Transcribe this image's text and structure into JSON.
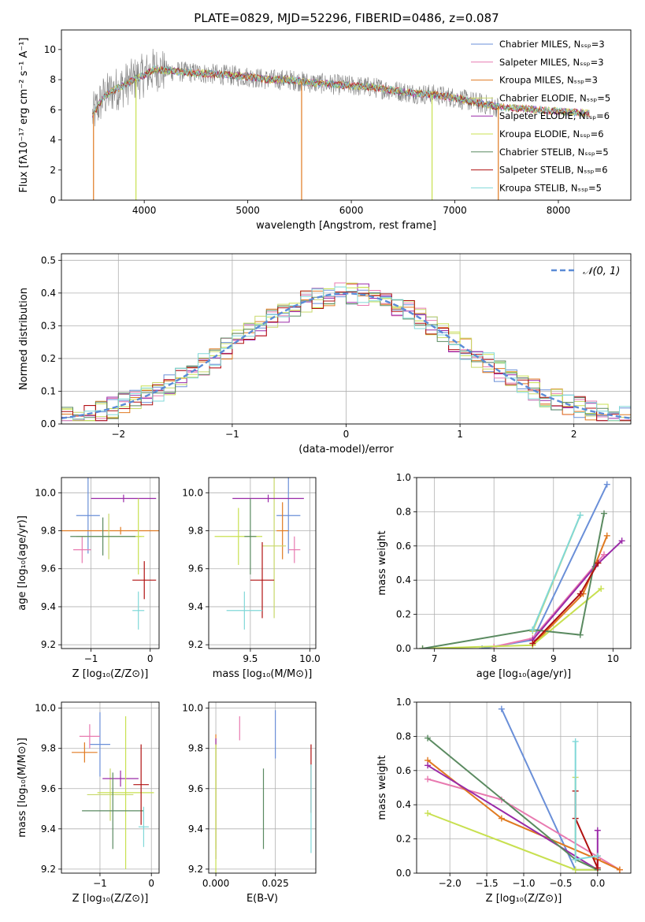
{
  "figure_title": "PLATE=0829, MJD=52296, FIBERID=0486, z=0.087",
  "series_colors": [
    "#6a8fd8",
    "#e87ab0",
    "#e07a20",
    "#c8d86a",
    "#9a2aa8",
    "#c8e050",
    "#5a8a60",
    "#b01010",
    "#80d8d8"
  ],
  "series_labels": [
    "Chabrier MILES, Nₛₛₚ=3",
    "Salpeter MILES, Nₛₛₚ=3",
    "Kroupa MILES, Nₛₛₚ=3",
    "Chabrier ELODIE, Nₛₛₚ=5",
    "Salpeter ELODIE, Nₛₛₚ=6",
    "Kroupa ELODIE, Nₛₛₚ=6",
    "Chabrier STELIB, Nₛₛₚ=5",
    "Salpeter STELIB, Nₛₛₚ=6",
    "Kroupa STELIB, Nₛₛₚ=5"
  ],
  "chart_data": [
    {
      "id": "spectrum",
      "type": "line",
      "xlabel": "wavelength [Angstrom, rest frame]",
      "ylabel": "Flux [fλ10⁻¹⁷ erg cm⁻² s⁻¹ A⁻¹]",
      "xlim": [
        3200,
        8700
      ],
      "ylim": [
        0,
        11.3
      ],
      "xticks": [
        4000,
        5000,
        6000,
        7000,
        8000
      ],
      "yticks": [
        0,
        2,
        4,
        6,
        8,
        10
      ],
      "data_color": "#808080",
      "continuum_wavelength": [
        3500,
        3600,
        3700,
        3800,
        3900,
        4000,
        4100,
        4200,
        4400,
        4600,
        4800,
        5000,
        5200,
        5400,
        5600,
        5800,
        6000,
        6200,
        6400,
        6600,
        6800,
        7000,
        7200,
        7400
      ],
      "continuum_flux": [
        5.6,
        6.8,
        7.3,
        7.6,
        8.0,
        8.3,
        8.7,
        8.6,
        8.5,
        8.4,
        8.3,
        8.2,
        8.0,
        8.0,
        7.8,
        7.7,
        7.6,
        7.5,
        7.3,
        7.1,
        7.0,
        6.8,
        6.5,
        6.2
      ]
    },
    {
      "id": "residuals",
      "type": "histogram",
      "xlabel": "(data-model)/error",
      "ylabel": "Normed distribution",
      "xlim": [
        -2.5,
        2.5
      ],
      "ylim": [
        0,
        0.52
      ],
      "xticks": [
        -2,
        -1,
        0,
        1,
        2
      ],
      "yticks": [
        0.0,
        0.1,
        0.2,
        0.3,
        0.4,
        0.5
      ],
      "legend": "𝒩(0, 1)",
      "gaussian": {
        "mean": 0,
        "sigma": 1,
        "color": "#5b8bd6"
      },
      "bin_width": 0.1,
      "bin_start": -2.5,
      "bin_count": 50
    },
    {
      "id": "age_vs_Z",
      "type": "errorbar",
      "xlabel": "Z [log₁₀(Z/Z⊙)]",
      "ylabel": "age  [log₁₀(age/yr)]",
      "xlim": [
        -1.5,
        0.15
      ],
      "ylim": [
        9.18,
        10.08
      ],
      "xticks": [
        -1,
        0
      ],
      "yticks": [
        9.2,
        9.4,
        9.6,
        9.8,
        10.0
      ],
      "points": [
        {
          "x": -1.05,
          "xerr": 0.2,
          "y": 9.88,
          "yerr": 0.2
        },
        {
          "x": -1.15,
          "xerr": 0.15,
          "y": 9.7,
          "yerr": 0.07
        },
        {
          "x": -0.5,
          "xerr": 1.0,
          "y": 9.8,
          "yerr": 0.02
        },
        {
          "x": -0.7,
          "xerr": 0.55,
          "y": 9.77,
          "yerr": 0.12
        },
        {
          "x": -0.45,
          "xerr": 0.55,
          "y": 9.97,
          "yerr": 0.02
        },
        {
          "x": -0.2,
          "xerr": 0.1,
          "y": 9.77,
          "yerr": 0.2
        },
        {
          "x": -0.8,
          "xerr": 0.55,
          "y": 9.77,
          "yerr": 0.1
        },
        {
          "x": -0.1,
          "xerr": 0.2,
          "y": 9.54,
          "yerr": 0.1
        },
        {
          "x": -0.2,
          "xerr": 0.1,
          "y": 9.38,
          "yerr": 0.1
        }
      ]
    },
    {
      "id": "age_vs_mass",
      "type": "errorbar",
      "xlabel": "mass [log₁₀(M/M⊙)]",
      "ylabel": "",
      "xlim": [
        9.15,
        10.05
      ],
      "ylim": [
        9.18,
        10.08
      ],
      "xticks": [
        9.5,
        10.0
      ],
      "yticks": [
        9.2,
        9.4,
        9.6,
        9.8,
        10.0
      ],
      "points": [
        {
          "x": 9.82,
          "xerr": 0.1,
          "y": 9.88,
          "yerr": 0.2
        },
        {
          "x": 9.87,
          "xerr": 0.05,
          "y": 9.7,
          "yerr": 0.07
        },
        {
          "x": 9.77,
          "xerr": 0.05,
          "y": 9.8,
          "yerr": 0.15
        },
        {
          "x": 9.7,
          "xerr": 0.1,
          "y": 9.72,
          "yerr": 0.38
        },
        {
          "x": 9.65,
          "xerr": 0.3,
          "y": 9.97,
          "yerr": 0.02
        },
        {
          "x": 9.4,
          "xerr": 0.2,
          "y": 9.77,
          "yerr": 0.15
        },
        {
          "x": 9.5,
          "xerr": 0.05,
          "y": 9.77,
          "yerr": 0.2
        },
        {
          "x": 9.6,
          "xerr": 0.1,
          "y": 9.54,
          "yerr": 0.2
        },
        {
          "x": 9.45,
          "xerr": 0.15,
          "y": 9.38,
          "yerr": 0.1
        }
      ]
    },
    {
      "id": "weight_vs_age",
      "type": "line",
      "xlabel": "age  [log₁₀(age/yr)]",
      "ylabel": "mass weight",
      "xlim": [
        6.7,
        10.3
      ],
      "ylim": [
        0,
        1.0
      ],
      "xticks": [
        7,
        8,
        9,
        10
      ],
      "yticks": [
        0.0,
        0.2,
        0.4,
        0.6,
        0.8,
        1.0
      ],
      "series": [
        {
          "x": [
            7.8,
            8.65,
            9.9
          ],
          "y": [
            0.0,
            0.05,
            0.96
          ]
        },
        {
          "x": [
            8.0,
            8.65,
            9.85
          ],
          "y": [
            0.01,
            0.06,
            0.55
          ]
        },
        {
          "x": [
            8.65,
            9.5,
            9.9
          ],
          "y": [
            0.02,
            0.32,
            0.66
          ]
        },
        {
          "x": [
            8.65,
            9.45
          ],
          "y": [
            0.1,
            0.78
          ]
        },
        {
          "x": [
            8.65,
            9.7,
            10.15
          ],
          "y": [
            0.05,
            0.48,
            0.63
          ]
        },
        {
          "x": [
            6.8,
            8.65,
            9.8
          ],
          "y": [
            0.0,
            0.02,
            0.35
          ]
        },
        {
          "x": [
            6.8,
            8.65,
            9.45,
            9.85
          ],
          "y": [
            0.0,
            0.11,
            0.08,
            0.79
          ]
        },
        {
          "x": [
            8.65,
            9.45,
            9.75
          ],
          "y": [
            0.03,
            0.32,
            0.5
          ]
        },
        {
          "x": [
            8.65,
            9.45
          ],
          "y": [
            0.11,
            0.78
          ]
        }
      ]
    },
    {
      "id": "mass_vs_Z",
      "type": "errorbar",
      "xlabel": "Z [log₁₀(Z/Z⊙)]",
      "ylabel": "mass [log₁₀(M/M⊙)]",
      "xlim": [
        -1.75,
        0.15
      ],
      "ylim": [
        9.18,
        10.03
      ],
      "xticks": [
        -1,
        0
      ],
      "yticks": [
        9.2,
        9.4,
        9.6,
        9.8,
        10.0
      ],
      "points": [
        {
          "x": -1.0,
          "xerr": 0.2,
          "y": 9.82,
          "yerr": 0.16
        },
        {
          "x": -1.2,
          "xerr": 0.2,
          "y": 9.86,
          "yerr": 0.06
        },
        {
          "x": -1.3,
          "xerr": 0.25,
          "y": 9.78,
          "yerr": 0.05
        },
        {
          "x": -0.8,
          "xerr": 0.45,
          "y": 9.57,
          "yerr": 0.13
        },
        {
          "x": -0.6,
          "xerr": 0.35,
          "y": 9.65,
          "yerr": 0.04
        },
        {
          "x": -0.5,
          "xerr": 0.55,
          "y": 9.58,
          "yerr": 0.38
        },
        {
          "x": -0.75,
          "xerr": 0.6,
          "y": 9.49,
          "yerr": 0.19
        },
        {
          "x": -0.2,
          "xerr": 0.15,
          "y": 9.62,
          "yerr": 0.2
        },
        {
          "x": -0.15,
          "xerr": 0.1,
          "y": 9.41,
          "yerr": 0.1
        }
      ]
    },
    {
      "id": "mass_vs_EBV",
      "type": "errorbar",
      "xlabel": "E(B-V)",
      "ylabel": "",
      "xlim": [
        -0.003,
        0.042
      ],
      "ylim": [
        9.18,
        10.03
      ],
      "xticks": [
        0.0,
        0.025
      ],
      "yticks": [
        9.2,
        9.4,
        9.6,
        9.8,
        10.0
      ],
      "points": [
        {
          "x": 0.025,
          "xerr": 0,
          "y": 9.87,
          "yerr": 0.12
        },
        {
          "x": 0.01,
          "xerr": 0,
          "y": 9.9,
          "yerr": 0.06
        },
        {
          "x": 0.0,
          "xerr": 0,
          "y": 9.84,
          "yerr": 0.03
        },
        {
          "x": 0.0,
          "xerr": 0,
          "y": 9.56,
          "yerr": 0.26
        },
        {
          "x": 0.0,
          "xerr": 0,
          "y": 9.55,
          "yerr": 0.3
        },
        {
          "x": 0.0,
          "xerr": 0,
          "y": 9.5,
          "yerr": 0.32
        },
        {
          "x": 0.02,
          "xerr": 0,
          "y": 9.5,
          "yerr": 0.2
        },
        {
          "x": 0.04,
          "xerr": 0,
          "y": 9.65,
          "yerr": 0.17
        },
        {
          "x": 0.04,
          "xerr": 0,
          "y": 9.5,
          "yerr": 0.22
        }
      ]
    },
    {
      "id": "weight_vs_Z",
      "type": "line",
      "xlabel": "Z [log₁₀(Z/Z⊙)]",
      "ylabel": "mass weight",
      "xlim": [
        -2.45,
        0.45
      ],
      "ylim": [
        0,
        1.0
      ],
      "xticks": [
        -2.0,
        -1.5,
        -1.0,
        -0.5,
        0.0
      ],
      "yticks": [
        0.0,
        0.2,
        0.4,
        0.6,
        0.8,
        1.0
      ],
      "series": [
        {
          "x": [
            -1.3,
            -0.3,
            0.0
          ],
          "y": [
            0.96,
            0.02,
            0.02
          ]
        },
        {
          "x": [
            -2.3,
            -1.3,
            0.3
          ],
          "y": [
            0.55,
            0.43,
            0.02
          ]
        },
        {
          "x": [
            -2.3,
            -1.3,
            0.0,
            0.3
          ],
          "y": [
            0.66,
            0.32,
            0.08,
            0.02
          ]
        },
        {
          "x": [
            -0.3,
            -0.3,
            0.0
          ],
          "y": [
            0.56,
            0.08,
            0.02
          ]
        },
        {
          "x": [
            -2.3,
            0.0,
            0.0
          ],
          "y": [
            0.63,
            0.02,
            0.25
          ]
        },
        {
          "x": [
            -2.3,
            -0.3,
            0.0
          ],
          "y": [
            0.35,
            0.02,
            0.02
          ]
        },
        {
          "x": [
            -2.3,
            -0.3,
            0.0
          ],
          "y": [
            0.79,
            0.08,
            0.02
          ]
        },
        {
          "x": [
            -0.3,
            -0.3,
            0.0,
            0.0
          ],
          "y": [
            0.48,
            0.32,
            0.03,
            0.1
          ]
        },
        {
          "x": [
            -0.3,
            -0.3,
            0.0
          ],
          "y": [
            0.77,
            0.08,
            0.1
          ]
        }
      ]
    }
  ]
}
